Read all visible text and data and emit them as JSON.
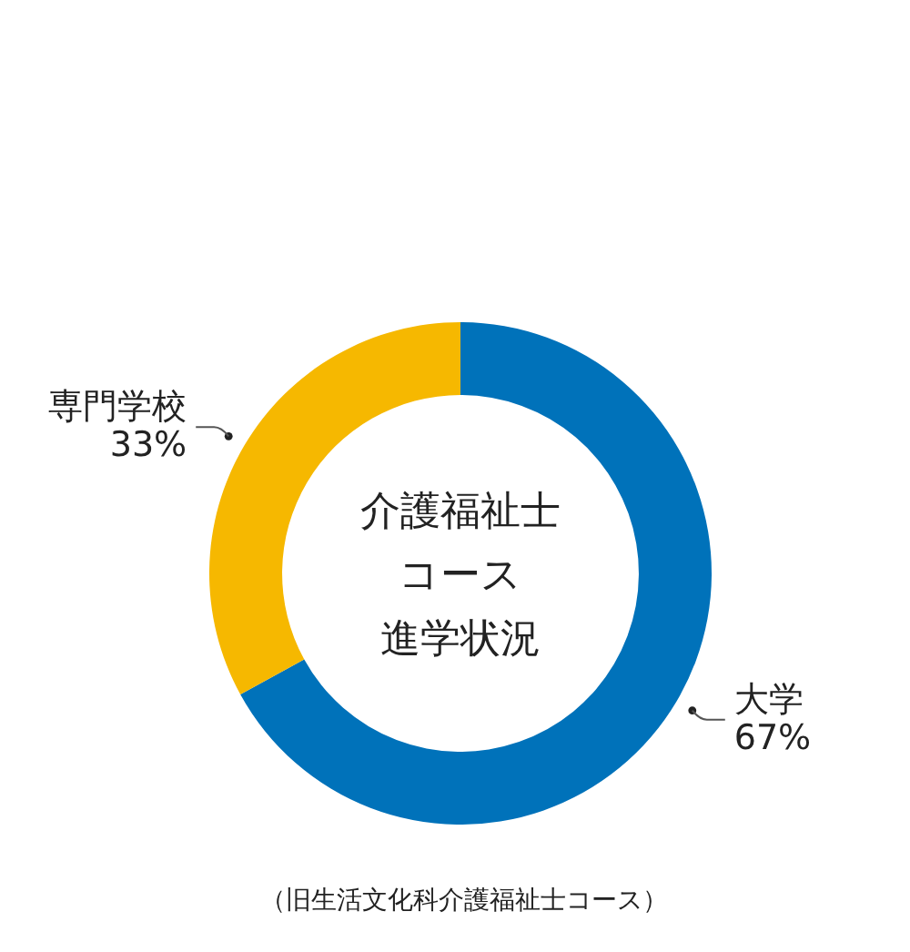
{
  "chart_data": {
    "type": "donut",
    "title": "介護福祉士コース進学状況",
    "categories": [
      "大学",
      "専門学校"
    ],
    "values": [
      67,
      33
    ],
    "colors": [
      "#0072BA",
      "#F6B800"
    ],
    "value_labels": [
      "67%",
      "33%"
    ],
    "annotations": [
      "（旧生活文化科介護福祉士コース）"
    ]
  }
}
